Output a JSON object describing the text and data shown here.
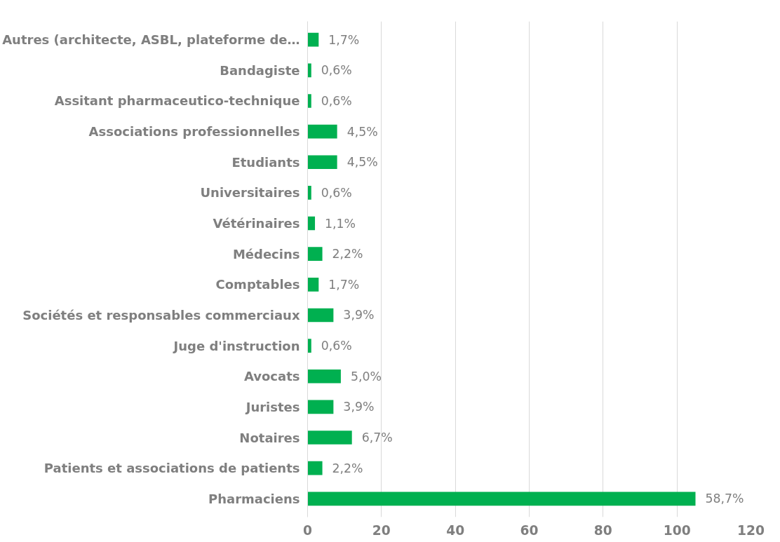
{
  "chart_data": {
    "type": "bar",
    "orientation": "horizontal",
    "categories": [
      "Autres (architecte, ASBL, plateforme de…",
      "Bandagiste",
      "Assitant pharmaceutico-technique",
      "Associations professionnelles",
      "Etudiants",
      "Universitaires",
      "Vétérinaires",
      "Médecins",
      "Comptables",
      "Sociétés et responsables commerciaux",
      "Juge d'instruction",
      "Avocats",
      "Juristes",
      "Notaires",
      "Patients et associations de patients",
      "Pharmaciens"
    ],
    "values": [
      3,
      1,
      1,
      8,
      8,
      1,
      2,
      4,
      3,
      7,
      1,
      9,
      7,
      12,
      4,
      105
    ],
    "annotations": [
      {
        "text": "1,7%",
        "x": 3,
        "y": "Autres (architecte, ASBL, plateforme de…"
      },
      {
        "text": "0,6%",
        "x": 1,
        "y": "Bandagiste"
      },
      {
        "text": "0,6%",
        "x": 1,
        "y": "Assitant pharmaceutico-technique"
      },
      {
        "text": "4,5%",
        "x": 8,
        "y": "Associations professionnelles"
      },
      {
        "text": "4,5%",
        "x": 8,
        "y": "Etudiants"
      },
      {
        "text": "0,6%",
        "x": 1,
        "y": "Universitaires"
      },
      {
        "text": "1,1%",
        "x": 2,
        "y": "Vétérinaires"
      },
      {
        "text": "2,2%",
        "x": 4,
        "y": "Médecins"
      },
      {
        "text": "1,7%",
        "x": 3,
        "y": "Comptables"
      },
      {
        "text": "3,9%",
        "x": 7,
        "y": "Sociétés et responsables commerciaux"
      },
      {
        "text": "0,6%",
        "x": 1,
        "y": "Juge d'instruction"
      },
      {
        "text": "5,0%",
        "x": 9,
        "y": "Avocats"
      },
      {
        "text": "3,9%",
        "x": 7,
        "y": "Juristes"
      },
      {
        "text": "6,7%",
        "x": 12,
        "y": "Notaires"
      },
      {
        "text": "2,2%",
        "x": 4,
        "y": "Patients et associations de patients"
      },
      {
        "text": "58,7%",
        "x": 105,
        "y": "Pharmaciens"
      }
    ],
    "color": "#00b050",
    "xlim": [
      0,
      120
    ],
    "xticks": [
      0,
      20,
      40,
      60,
      80,
      100,
      120
    ],
    "grid": "x"
  }
}
